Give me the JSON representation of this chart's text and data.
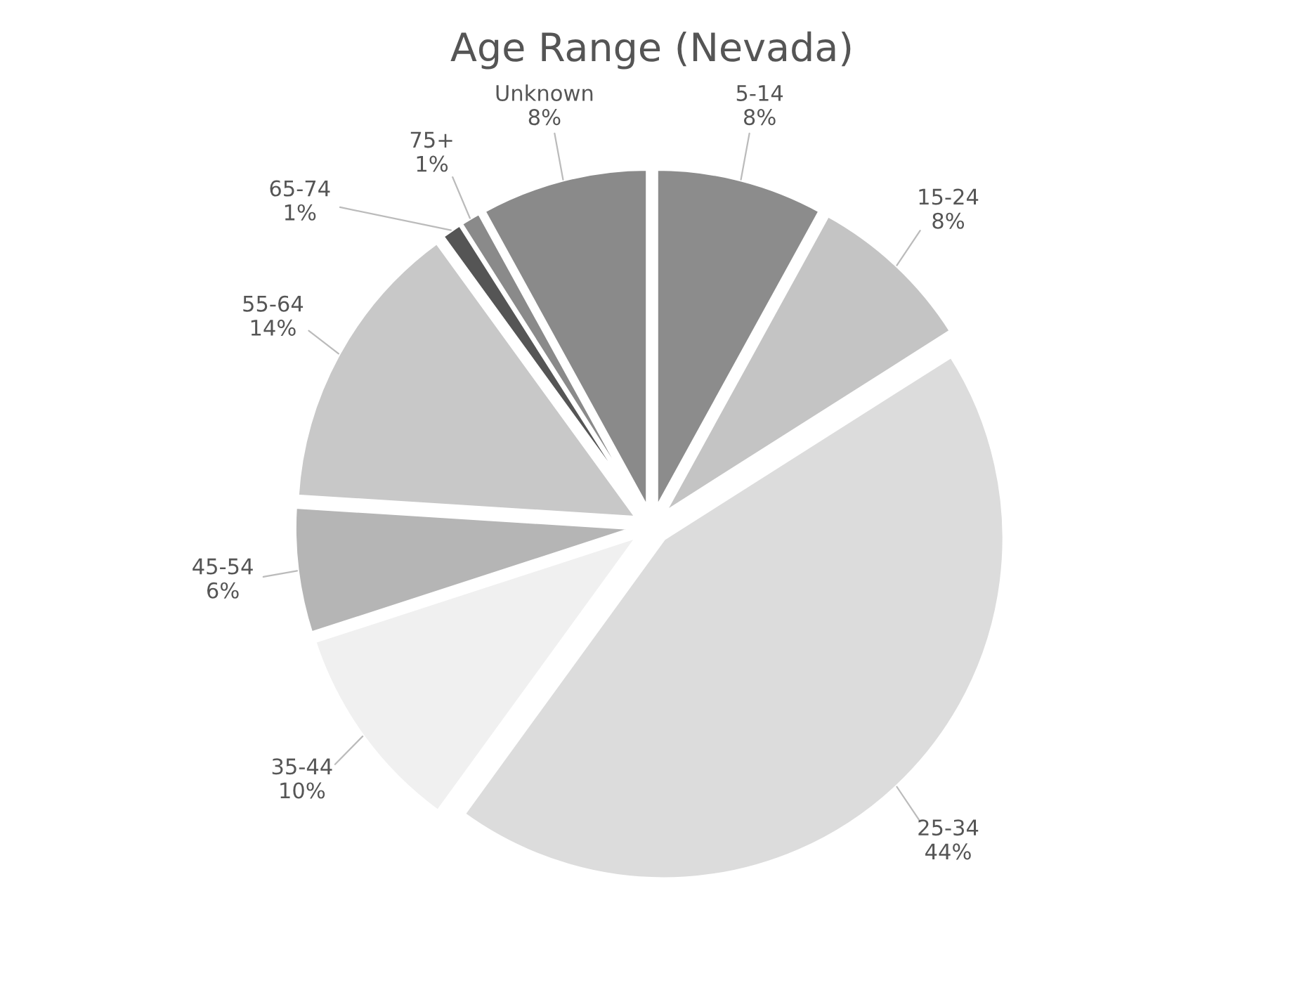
{
  "chart_data": {
    "type": "pie",
    "title": "Age Range (Nevada)",
    "categories": [
      "5-14",
      "15-24",
      "25-34",
      "35-44",
      "45-54",
      "55-64",
      "65-74",
      "75+",
      "Unknown"
    ],
    "values": [
      8,
      8,
      44,
      10,
      6,
      14,
      1,
      1,
      8
    ],
    "value_labels": [
      "8%",
      "8%",
      "44%",
      "10%",
      "6%",
      "14%",
      "1%",
      "1%",
      "8%"
    ],
    "colors": [
      "#8c8c8c",
      "#c4c4c4",
      "#dcdcdc",
      "#f0f0f0",
      "#b5b5b5",
      "#c8c8c8",
      "#555555",
      "#8a8a8a",
      "#8a8a8a"
    ]
  }
}
